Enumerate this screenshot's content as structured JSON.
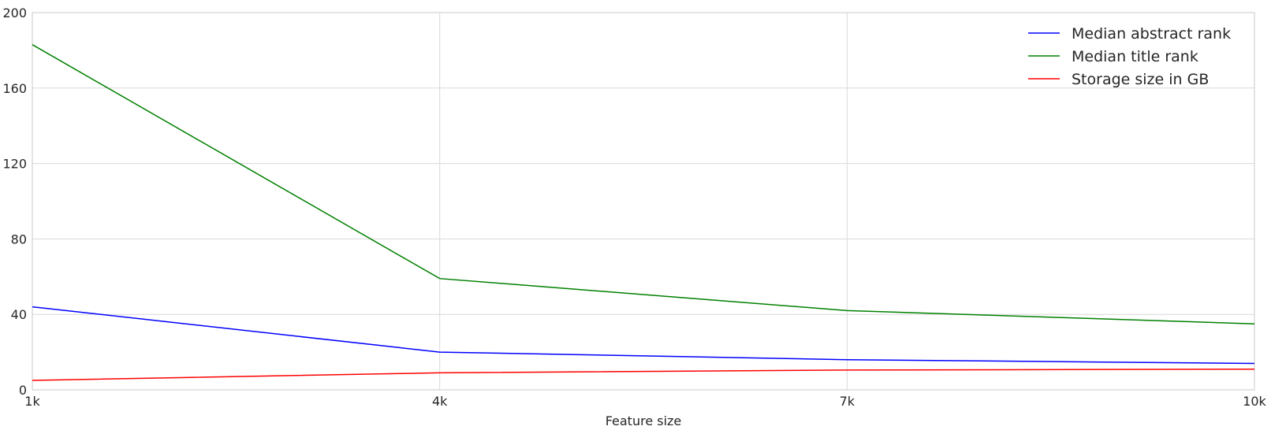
{
  "chart_data": {
    "type": "line",
    "title": "",
    "xlabel": "Feature size",
    "ylabel": "",
    "x": [
      "1k",
      "4k",
      "7k",
      "10k"
    ],
    "xlim": [
      1,
      10
    ],
    "ylim": [
      0,
      200
    ],
    "yticks": [
      "0",
      "40",
      "80",
      "120",
      "160",
      "200"
    ],
    "xticks": [
      "1k",
      "4k",
      "7k",
      "10k"
    ],
    "grid": true,
    "legend_position": "top-right",
    "series": [
      {
        "name": "Median abstract rank",
        "color": "#0000ff",
        "values": [
          44,
          20,
          16,
          14
        ]
      },
      {
        "name": "Median title rank",
        "color": "#008000",
        "values": [
          183,
          59,
          42,
          35
        ]
      },
      {
        "name": "Storage size in GB",
        "color": "#ff0000",
        "values": [
          5,
          9,
          10.5,
          11
        ]
      }
    ]
  }
}
